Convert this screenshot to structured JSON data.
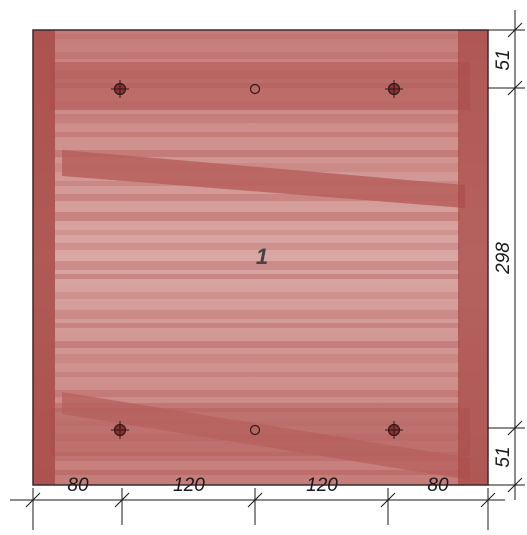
{
  "part": {
    "label": "1",
    "fill_color": "#c98a88",
    "stripe_color": "#b0524f",
    "edge_color": "#8e2f2f"
  },
  "dimensions": {
    "horizontal": [
      "80",
      "120",
      "120",
      "80"
    ],
    "vertical": [
      "51",
      "298",
      "51"
    ]
  },
  "holes": {
    "top_row": [
      "crosshair",
      "plain",
      "crosshair"
    ],
    "bottom_row": [
      "crosshair",
      "plain",
      "crosshair"
    ]
  }
}
